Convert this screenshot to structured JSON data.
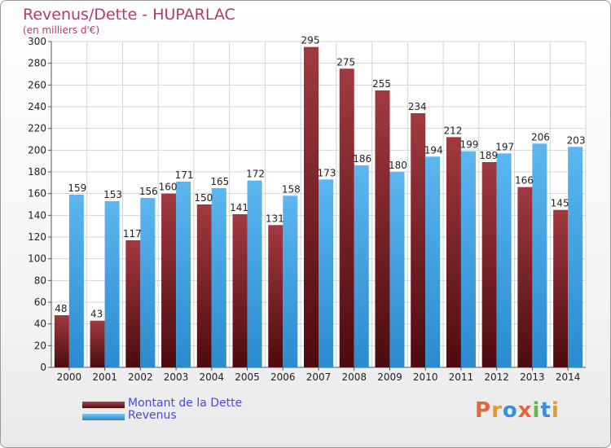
{
  "title": "Revenus/Dette - HUPARLAC",
  "subtitle": "(en milliers d'€)",
  "legend": {
    "debt_label": "Montant de la Dette",
    "revenue_label": "Revenus"
  },
  "logo": {
    "text": "Proxiti"
  },
  "colors": {
    "debt": "#7a1f24",
    "revenue": "#3fa0e0",
    "title": "#b33a6c",
    "legend_text": "#4a4adf"
  },
  "chart_data": {
    "type": "bar",
    "categories": [
      "2000",
      "2001",
      "2002",
      "2003",
      "2004",
      "2005",
      "2006",
      "2007",
      "2008",
      "2009",
      "2010",
      "2011",
      "2012",
      "2013",
      "2014"
    ],
    "series": [
      {
        "name": "Montant de la Dette",
        "values": [
          48,
          43,
          117,
          160,
          150,
          141,
          131,
          295,
          275,
          255,
          234,
          212,
          189,
          166,
          145
        ]
      },
      {
        "name": "Revenus",
        "values": [
          159,
          153,
          156,
          171,
          165,
          172,
          158,
          173,
          186,
          180,
          194,
          199,
          197,
          206,
          203
        ]
      }
    ],
    "ylim": [
      0,
      300
    ],
    "yticks": [
      0,
      20,
      40,
      60,
      80,
      100,
      120,
      140,
      160,
      180,
      200,
      220,
      240,
      260,
      280,
      300
    ],
    "grid": true
  }
}
